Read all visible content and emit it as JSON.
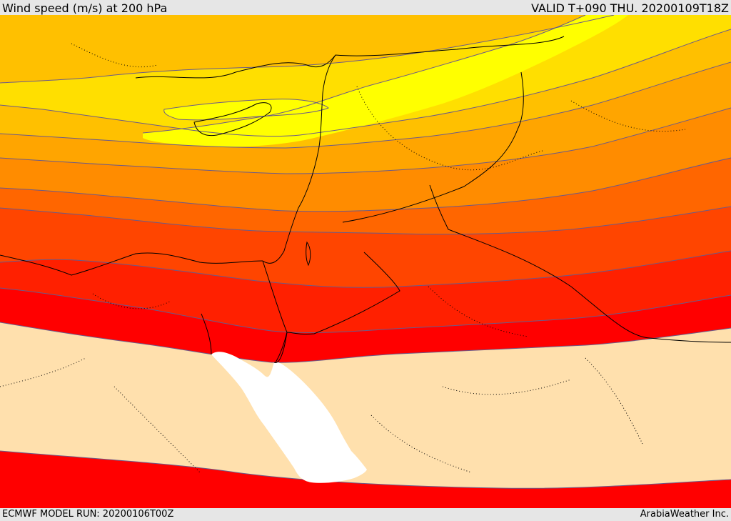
{
  "header": {
    "title": "Wind speed (m/s) at 200 hPa",
    "valid_time": "VALID T+090 THU. 20200109T18Z"
  },
  "footer": {
    "model_run": "ECMWF MODEL RUN: 20200106T00Z",
    "credit": "ArabiaWeather Inc."
  },
  "map": {
    "colors": {
      "band_lt20": "#ffe0ad",
      "band_20_25": "#ff0000",
      "band_25_30": "#ff2000",
      "band_30_35": "#ff4500",
      "band_35_40": "#ff6600",
      "band_40_45": "#ff8c00",
      "band_45_50": "#ffa500",
      "band_50_55": "#ffc000",
      "band_55_60": "#ffdf00",
      "band_60_plus": "#ffff00",
      "sea": "#ffffff",
      "contour_line": "#6a5a8a",
      "border_line": "#000000"
    }
  }
}
